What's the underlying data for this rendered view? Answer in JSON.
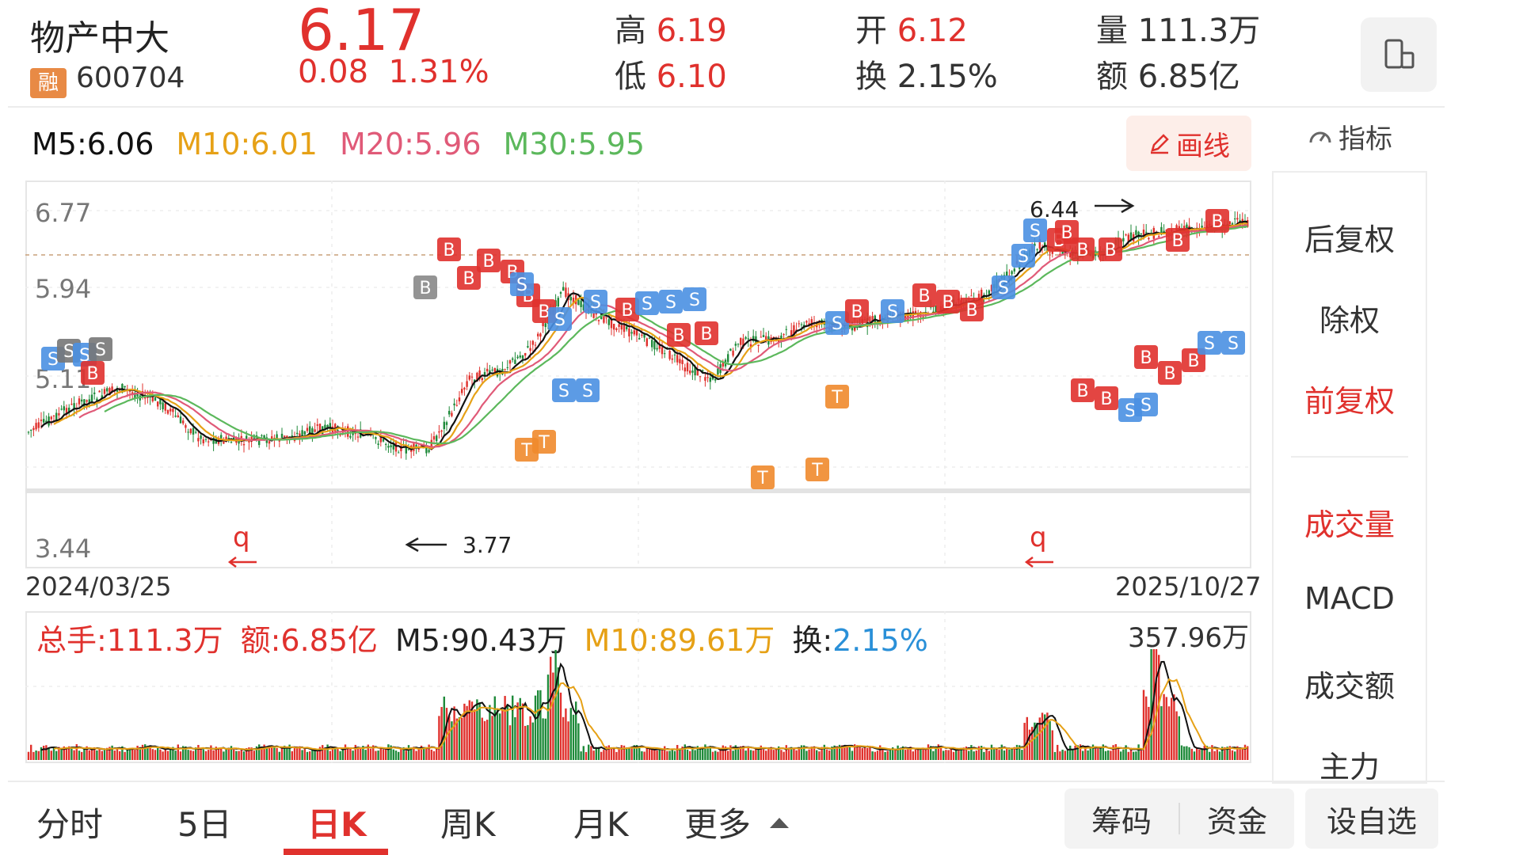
{
  "header": {
    "stock_name": "物产中大",
    "badge": "融",
    "code": "600704",
    "price": "6.17",
    "change_abs": "0.08",
    "change_pct": "1.31%",
    "high_label": "高",
    "high_value": "6.19",
    "low_label": "低",
    "low_value": "6.10",
    "open_label": "开",
    "open_value": "6.12",
    "turnover_label": "换",
    "turnover_value": "2.15%",
    "volume_label": "量",
    "volume_value": "111.3万",
    "amount_label": "额",
    "amount_value": "6.85亿"
  },
  "ma": {
    "m5": "M5:6.06",
    "m10": "M10:6.01",
    "m20": "M20:5.96",
    "m30": "M30:5.95"
  },
  "toolbar": {
    "draw_label": "画线",
    "indicator_label": "指标"
  },
  "chart": {
    "y_labels": [
      "6.77",
      "5.94",
      "5.11",
      "3.44"
    ],
    "annotation_high": "6.44",
    "annotation_low": "3.77",
    "marker_q": "q",
    "date_start": "2024/03/25",
    "date_end": "2025/10/27"
  },
  "volume": {
    "total_label": "总手:111.3万",
    "amount_label": "额:6.85亿",
    "m5_label": "M5:90.43万",
    "m10_label": "M10:89.61万",
    "turnover_prefix": "换:",
    "turnover_value": "2.15%",
    "max_label": "357.96万"
  },
  "right_panel": {
    "items": [
      "后复权",
      "除权",
      "前复权",
      "成交量",
      "MACD",
      "成交额",
      "主力"
    ]
  },
  "tabs": [
    "分时",
    "5日",
    "日K",
    "周K",
    "月K",
    "更多"
  ],
  "buttons": {
    "chips": "筹码",
    "funds": "资金",
    "add_watch": "设自选"
  },
  "colors": {
    "up": "#e0312d",
    "down": "#1f8a3a",
    "m5": "#111111",
    "m10": "#e6a116",
    "m20": "#e05a78",
    "m30": "#5cb85c",
    "turnover_blue": "#2a90d8"
  }
}
